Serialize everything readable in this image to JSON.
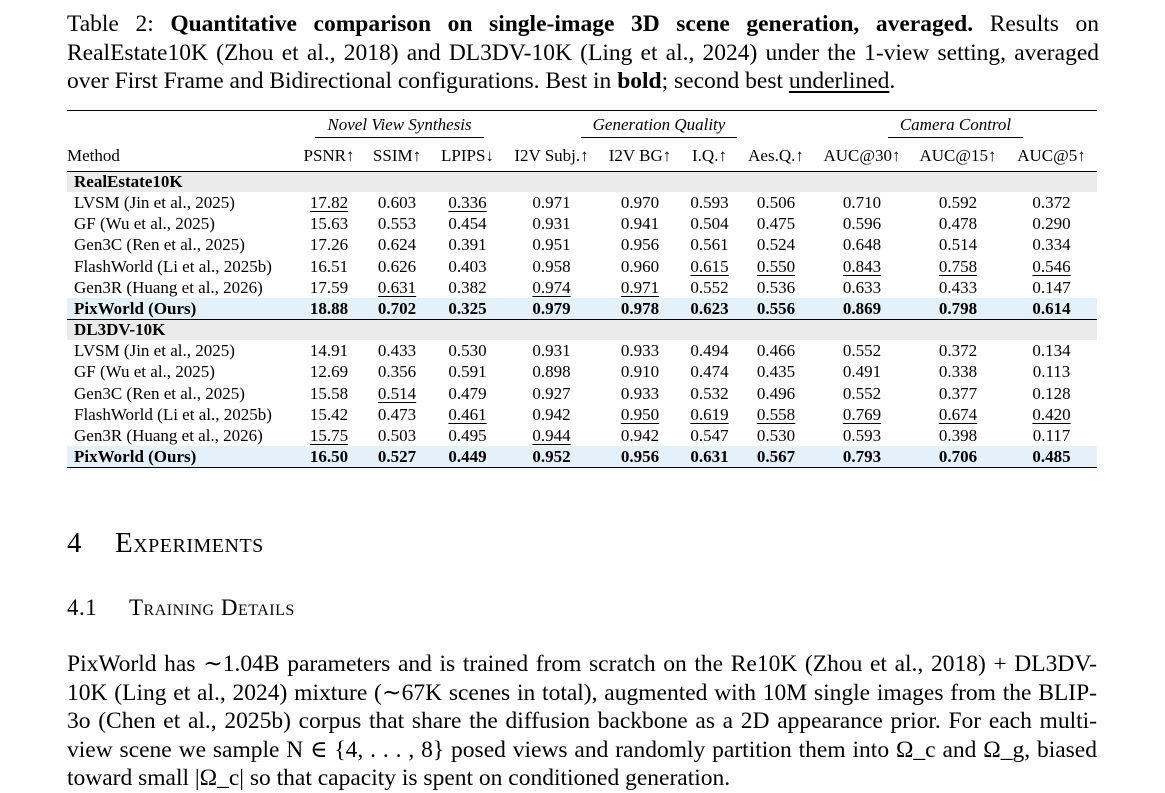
{
  "caption": {
    "label": "Table 2:",
    "title": "Quantitative comparison on single-image 3D scene generation, averaged.",
    "text_a": "Results on RealEstate10K (Zhou et al., 2018) and DL3DV-10K (Ling et al., 2024) under the 1-view setting, averaged over First Frame and Bidirectional configurations. Best in ",
    "bold_word": "bold",
    "text_b": "; second best ",
    "underline_word": "underlined",
    "text_c": "."
  },
  "table": {
    "groups": [
      "Novel View Synthesis",
      "Generation Quality",
      "Camera Control"
    ],
    "columns": [
      "Method",
      "PSNR↑",
      "SSIM↑",
      "LPIPS↓",
      "I2V Subj.↑",
      "I2V BG↑",
      "I.Q.↑",
      "Aes.Q.↑",
      "AUC@30↑",
      "AUC@15↑",
      "AUC@5↑"
    ],
    "sections": [
      {
        "name": "RealEstate10K",
        "rows": [
          {
            "method": "LVSM (Jin et al., 2025)",
            "values": [
              "17.82",
              "0.603",
              "0.336",
              "0.971",
              "0.970",
              "0.593",
              "0.506",
              "0.710",
              "0.592",
              "0.372"
            ]
          },
          {
            "method": "GF (Wu et al., 2025)",
            "values": [
              "15.63",
              "0.553",
              "0.454",
              "0.931",
              "0.941",
              "0.504",
              "0.475",
              "0.596",
              "0.478",
              "0.290"
            ]
          },
          {
            "method": "Gen3C (Ren et al., 2025)",
            "values": [
              "17.26",
              "0.624",
              "0.391",
              "0.951",
              "0.956",
              "0.561",
              "0.524",
              "0.648",
              "0.514",
              "0.334"
            ]
          },
          {
            "method": "FlashWorld (Li et al., 2025b)",
            "values": [
              "16.51",
              "0.626",
              "0.403",
              "0.958",
              "0.960",
              "0.615",
              "0.550",
              "0.843",
              "0.758",
              "0.546"
            ]
          },
          {
            "method": "Gen3R (Huang et al., 2026)",
            "values": [
              "17.59",
              "0.631",
              "0.382",
              "0.974",
              "0.971",
              "0.552",
              "0.536",
              "0.633",
              "0.433",
              "0.147"
            ]
          },
          {
            "method": "PixWorld (Ours)",
            "values": [
              "18.88",
              "0.702",
              "0.325",
              "0.979",
              "0.978",
              "0.623",
              "0.556",
              "0.869",
              "0.798",
              "0.614"
            ]
          }
        ]
      },
      {
        "name": "DL3DV-10K",
        "rows": [
          {
            "method": "LVSM (Jin et al., 2025)",
            "values": [
              "14.91",
              "0.433",
              "0.530",
              "0.931",
              "0.933",
              "0.494",
              "0.466",
              "0.552",
              "0.372",
              "0.134"
            ]
          },
          {
            "method": "GF (Wu et al., 2025)",
            "values": [
              "12.69",
              "0.356",
              "0.591",
              "0.898",
              "0.910",
              "0.474",
              "0.435",
              "0.491",
              "0.338",
              "0.113"
            ]
          },
          {
            "method": "Gen3C (Ren et al., 2025)",
            "values": [
              "15.58",
              "0.514",
              "0.479",
              "0.927",
              "0.933",
              "0.532",
              "0.496",
              "0.552",
              "0.377",
              "0.128"
            ]
          },
          {
            "method": "FlashWorld (Li et al., 2025b)",
            "values": [
              "15.42",
              "0.473",
              "0.461",
              "0.942",
              "0.950",
              "0.619",
              "0.558",
              "0.769",
              "0.674",
              "0.420"
            ]
          },
          {
            "method": "Gen3R (Huang et al., 2026)",
            "values": [
              "15.75",
              "0.503",
              "0.495",
              "0.944",
              "0.942",
              "0.547",
              "0.530",
              "0.593",
              "0.398",
              "0.117"
            ]
          },
          {
            "method": "PixWorld (Ours)",
            "values": [
              "16.50",
              "0.527",
              "0.449",
              "0.952",
              "0.956",
              "0.631",
              "0.567",
              "0.793",
              "0.706",
              "0.485"
            ]
          }
        ]
      }
    ]
  },
  "section": {
    "number": "4",
    "title": "Experiments"
  },
  "subsection": {
    "number": "4.1",
    "title": "Training Details"
  },
  "body": {
    "paragraph": "PixWorld has ∼1.04B parameters and is trained from scratch on the Re10K (Zhou et al., 2018) + DL3DV-10K (Ling et al., 2024) mixture (∼67K scenes in total), augmented with 10M single images from the BLIP-3o (Chen et al., 2025b) corpus that share the diffusion backbone as a 2D appearance prior. For each multi-view scene we sample N ∈ {4, . . . , 8} posed views and randomly partition them into Ω_c and Ω_g, biased toward small |Ω_c| so that capacity is spent on conditioned generation."
  }
}
